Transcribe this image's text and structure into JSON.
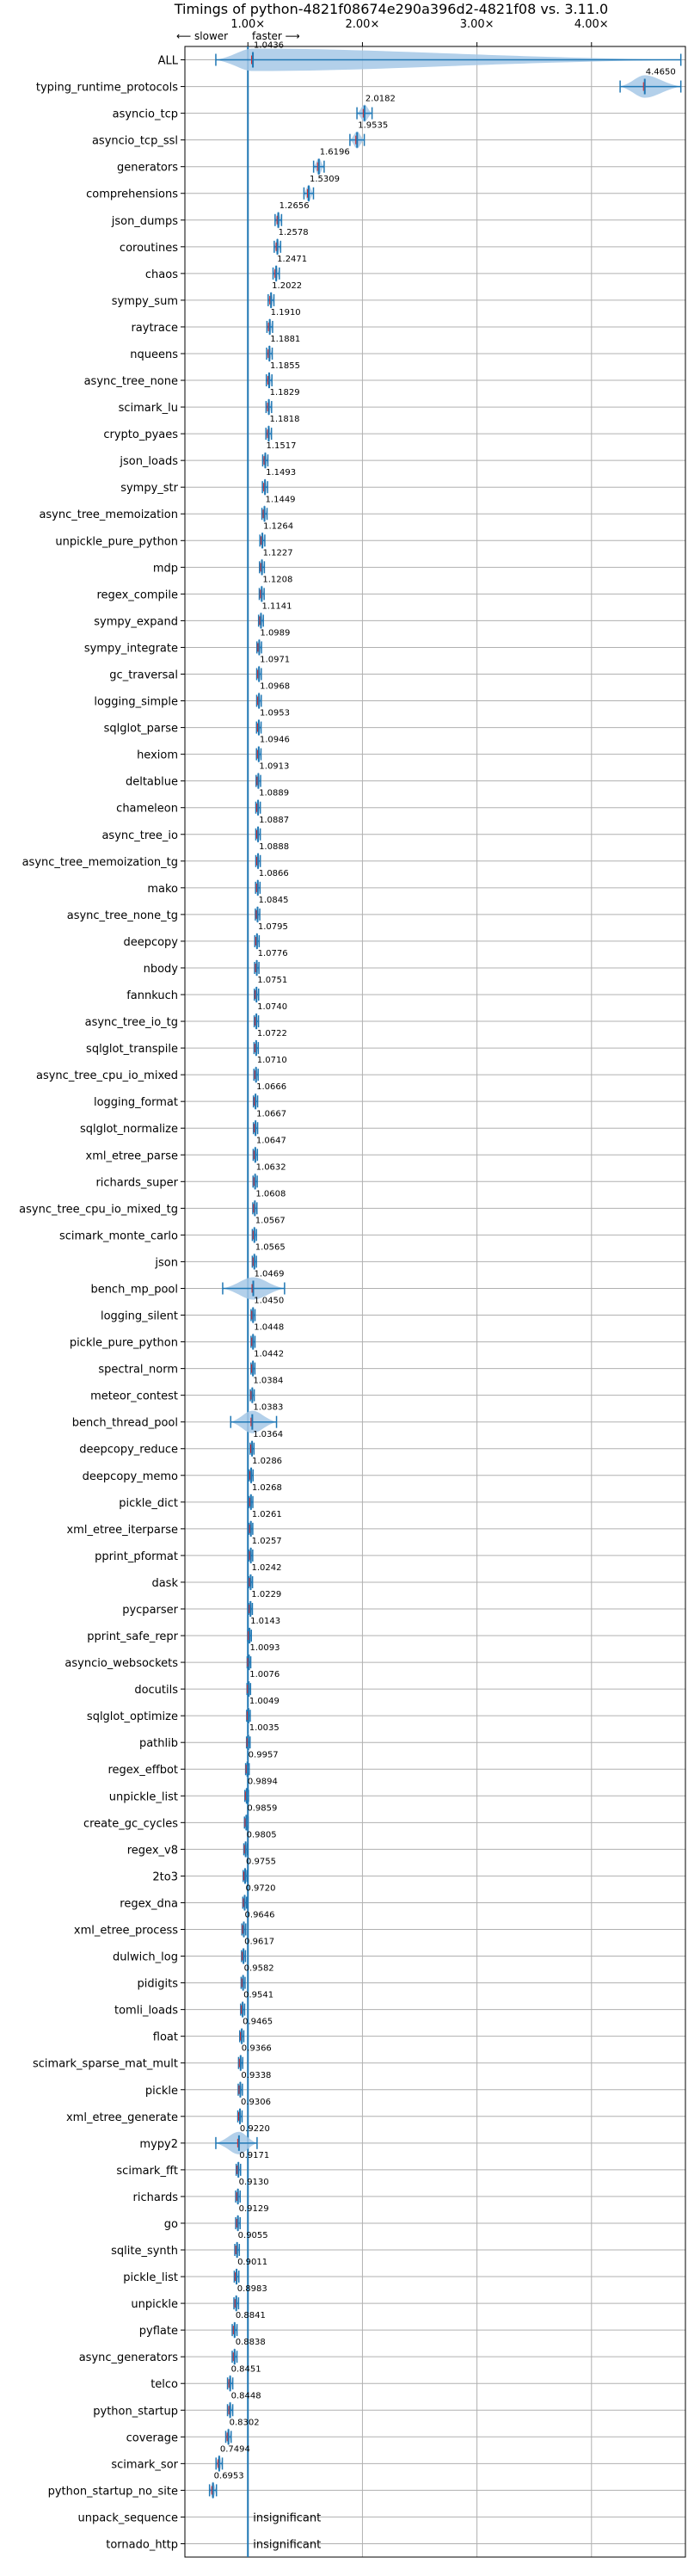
{
  "chart_data": {
    "type": "violin",
    "title": "Timings of python-4821f08674e290a396d2-4821f08 vs. 3.11.0",
    "direction_left": "⟵ slower",
    "direction_right": "faster ⟶",
    "x_ticks": [
      {
        "value": 1.0,
        "label": "1.00×"
      },
      {
        "value": 2.0,
        "label": "2.00×"
      },
      {
        "value": 3.0,
        "label": "3.00×"
      },
      {
        "value": 4.0,
        "label": "4.00×"
      }
    ],
    "xlim": [
      0.45,
      4.82
    ],
    "grid": true,
    "reference_line": 1.0,
    "benchmarks": [
      {
        "name": "ALL",
        "value": 1.0436,
        "label": "1.0436",
        "whisker": [
          0.72,
          4.78
        ]
      },
      {
        "name": "typing_runtime_protocols",
        "value": 4.465,
        "label": "4.4650",
        "whisker": [
          4.25,
          4.78
        ]
      },
      {
        "name": "asyncio_tcp",
        "value": 2.0182,
        "label": "2.0182"
      },
      {
        "name": "asyncio_tcp_ssl",
        "value": 1.9535,
        "label": "1.9535"
      },
      {
        "name": "generators",
        "value": 1.6196,
        "label": "1.6196"
      },
      {
        "name": "comprehensions",
        "value": 1.5309,
        "label": "1.5309"
      },
      {
        "name": "json_dumps",
        "value": 1.2656,
        "label": "1.2656"
      },
      {
        "name": "coroutines",
        "value": 1.2578,
        "label": "1.2578"
      },
      {
        "name": "chaos",
        "value": 1.2471,
        "label": "1.2471"
      },
      {
        "name": "sympy_sum",
        "value": 1.2022,
        "label": "1.2022"
      },
      {
        "name": "raytrace",
        "value": 1.191,
        "label": "1.1910"
      },
      {
        "name": "nqueens",
        "value": 1.1881,
        "label": "1.1881"
      },
      {
        "name": "async_tree_none",
        "value": 1.1855,
        "label": "1.1855"
      },
      {
        "name": "scimark_lu",
        "value": 1.1829,
        "label": "1.1829"
      },
      {
        "name": "crypto_pyaes",
        "value": 1.1818,
        "label": "1.1818"
      },
      {
        "name": "json_loads",
        "value": 1.1517,
        "label": "1.1517"
      },
      {
        "name": "sympy_str",
        "value": 1.1493,
        "label": "1.1493"
      },
      {
        "name": "async_tree_memoization",
        "value": 1.1449,
        "label": "1.1449"
      },
      {
        "name": "unpickle_pure_python",
        "value": 1.1264,
        "label": "1.1264"
      },
      {
        "name": "mdp",
        "value": 1.1227,
        "label": "1.1227"
      },
      {
        "name": "regex_compile",
        "value": 1.1208,
        "label": "1.1208"
      },
      {
        "name": "sympy_expand",
        "value": 1.1141,
        "label": "1.1141"
      },
      {
        "name": "sympy_integrate",
        "value": 1.0989,
        "label": "1.0989"
      },
      {
        "name": "gc_traversal",
        "value": 1.0971,
        "label": "1.0971"
      },
      {
        "name": "logging_simple",
        "value": 1.0968,
        "label": "1.0968"
      },
      {
        "name": "sqlglot_parse",
        "value": 1.0953,
        "label": "1.0953"
      },
      {
        "name": "hexiom",
        "value": 1.0946,
        "label": "1.0946"
      },
      {
        "name": "deltablue",
        "value": 1.0913,
        "label": "1.0913"
      },
      {
        "name": "chameleon",
        "value": 1.0889,
        "label": "1.0889"
      },
      {
        "name": "async_tree_io",
        "value": 1.0887,
        "label": "1.0887"
      },
      {
        "name": "async_tree_memoization_tg",
        "value": 1.0888,
        "label": "1.0888"
      },
      {
        "name": "mako",
        "value": 1.0866,
        "label": "1.0866"
      },
      {
        "name": "async_tree_none_tg",
        "value": 1.0845,
        "label": "1.0845"
      },
      {
        "name": "deepcopy",
        "value": 1.0795,
        "label": "1.0795"
      },
      {
        "name": "nbody",
        "value": 1.0776,
        "label": "1.0776"
      },
      {
        "name": "fannkuch",
        "value": 1.0751,
        "label": "1.0751"
      },
      {
        "name": "async_tree_io_tg",
        "value": 1.074,
        "label": "1.0740"
      },
      {
        "name": "sqlglot_transpile",
        "value": 1.0722,
        "label": "1.0722"
      },
      {
        "name": "async_tree_cpu_io_mixed",
        "value": 1.071,
        "label": "1.0710"
      },
      {
        "name": "logging_format",
        "value": 1.0666,
        "label": "1.0666"
      },
      {
        "name": "sqlglot_normalize",
        "value": 1.0667,
        "label": "1.0667"
      },
      {
        "name": "xml_etree_parse",
        "value": 1.0647,
        "label": "1.0647"
      },
      {
        "name": "richards_super",
        "value": 1.0632,
        "label": "1.0632"
      },
      {
        "name": "async_tree_cpu_io_mixed_tg",
        "value": 1.0608,
        "label": "1.0608"
      },
      {
        "name": "scimark_monte_carlo",
        "value": 1.0567,
        "label": "1.0567"
      },
      {
        "name": "json",
        "value": 1.0565,
        "label": "1.0565"
      },
      {
        "name": "bench_mp_pool",
        "value": 1.0469,
        "label": "1.0469",
        "whisker": [
          0.78,
          1.32
        ]
      },
      {
        "name": "logging_silent",
        "value": 1.045,
        "label": "1.0450"
      },
      {
        "name": "pickle_pure_python",
        "value": 1.0448,
        "label": "1.0448"
      },
      {
        "name": "spectral_norm",
        "value": 1.0442,
        "label": "1.0442"
      },
      {
        "name": "meteor_contest",
        "value": 1.0384,
        "label": "1.0384"
      },
      {
        "name": "bench_thread_pool",
        "value": 1.0383,
        "label": "1.0383",
        "whisker": [
          0.85,
          1.25
        ]
      },
      {
        "name": "deepcopy_reduce",
        "value": 1.0364,
        "label": "1.0364"
      },
      {
        "name": "deepcopy_memo",
        "value": 1.0286,
        "label": "1.0286"
      },
      {
        "name": "pickle_dict",
        "value": 1.0268,
        "label": "1.0268"
      },
      {
        "name": "xml_etree_iterparse",
        "value": 1.0261,
        "label": "1.0261"
      },
      {
        "name": "pprint_pformat",
        "value": 1.0257,
        "label": "1.0257"
      },
      {
        "name": "dask",
        "value": 1.0242,
        "label": "1.0242"
      },
      {
        "name": "pycparser",
        "value": 1.0229,
        "label": "1.0229"
      },
      {
        "name": "pprint_safe_repr",
        "value": 1.0143,
        "label": "1.0143"
      },
      {
        "name": "asyncio_websockets",
        "value": 1.0093,
        "label": "1.0093"
      },
      {
        "name": "docutils",
        "value": 1.0076,
        "label": "1.0076"
      },
      {
        "name": "sqlglot_optimize",
        "value": 1.0049,
        "label": "1.0049"
      },
      {
        "name": "pathlib",
        "value": 1.0035,
        "label": "1.0035"
      },
      {
        "name": "regex_effbot",
        "value": 0.9957,
        "label": "0.9957"
      },
      {
        "name": "unpickle_list",
        "value": 0.9894,
        "label": "0.9894"
      },
      {
        "name": "create_gc_cycles",
        "value": 0.9859,
        "label": "0.9859"
      },
      {
        "name": "regex_v8",
        "value": 0.9805,
        "label": "0.9805"
      },
      {
        "name": "2to3",
        "value": 0.9755,
        "label": "0.9755"
      },
      {
        "name": "regex_dna",
        "value": 0.972,
        "label": "0.9720"
      },
      {
        "name": "xml_etree_process",
        "value": 0.9646,
        "label": "0.9646"
      },
      {
        "name": "dulwich_log",
        "value": 0.9617,
        "label": "0.9617"
      },
      {
        "name": "pidigits",
        "value": 0.9582,
        "label": "0.9582"
      },
      {
        "name": "tomli_loads",
        "value": 0.9541,
        "label": "0.9541"
      },
      {
        "name": "float",
        "value": 0.9465,
        "label": "0.9465"
      },
      {
        "name": "scimark_sparse_mat_mult",
        "value": 0.9366,
        "label": "0.9366"
      },
      {
        "name": "pickle",
        "value": 0.9338,
        "label": "0.9338"
      },
      {
        "name": "xml_etree_generate",
        "value": 0.9306,
        "label": "0.9306"
      },
      {
        "name": "mypy2",
        "value": 0.922,
        "label": "0.9220",
        "whisker": [
          0.72,
          1.08
        ]
      },
      {
        "name": "scimark_fft",
        "value": 0.9171,
        "label": "0.9171"
      },
      {
        "name": "richards",
        "value": 0.913,
        "label": "0.9130"
      },
      {
        "name": "go",
        "value": 0.9129,
        "label": "0.9129"
      },
      {
        "name": "sqlite_synth",
        "value": 0.9055,
        "label": "0.9055"
      },
      {
        "name": "pickle_list",
        "value": 0.9011,
        "label": "0.9011"
      },
      {
        "name": "unpickle",
        "value": 0.8983,
        "label": "0.8983"
      },
      {
        "name": "pyflate",
        "value": 0.8841,
        "label": "0.8841"
      },
      {
        "name": "async_generators",
        "value": 0.8838,
        "label": "0.8838"
      },
      {
        "name": "telco",
        "value": 0.8451,
        "label": "0.8451"
      },
      {
        "name": "python_startup",
        "value": 0.8448,
        "label": "0.8448"
      },
      {
        "name": "coverage",
        "value": 0.8302,
        "label": "0.8302"
      },
      {
        "name": "scimark_sor",
        "value": 0.7494,
        "label": "0.7494"
      },
      {
        "name": "python_startup_no_site",
        "value": 0.6953,
        "label": "0.6953"
      },
      {
        "name": "unpack_sequence",
        "value": null,
        "label": "insignificant"
      },
      {
        "name": "tornado_http",
        "value": null,
        "label": "insignificant"
      }
    ]
  },
  "colors": {
    "violin": "#a6c8e6",
    "mark": "#1f77b4",
    "median": "#d62728",
    "grid": "#b0b0b0",
    "reference": "#1f77b4"
  }
}
